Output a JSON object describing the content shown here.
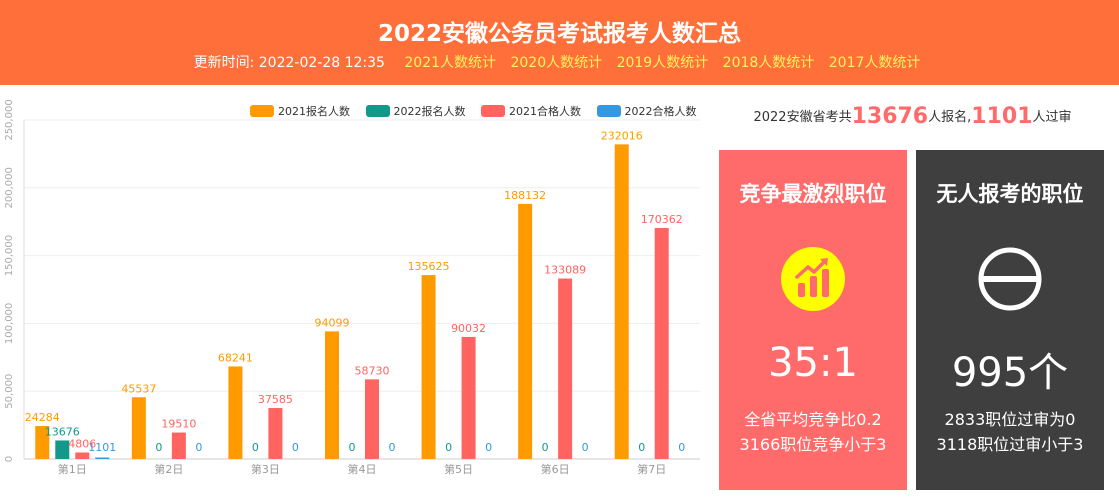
{
  "header": {
    "title": "2022安徽公务员考试报考人数汇总",
    "update_label": "更新时间:",
    "update_time": "2022-02-28 12:35",
    "links": [
      "2021人数统计",
      "2020人数统计",
      "2019人数统计",
      "2018人数统计",
      "2017人数统计"
    ]
  },
  "summary": {
    "prefix": "2022安徽省考共",
    "applicants": "13676",
    "middle": "人报名,",
    "passed": "1101",
    "suffix": "人过审"
  },
  "cards": {
    "fiercest": {
      "title": "竞争最激烈职位",
      "value": "35:1",
      "line1": "全省平均竞争比0.2",
      "line2": "3166职位竞争小于3",
      "icon": "bar-chart-arrow-icon"
    },
    "no_applicants": {
      "title": "无人报考的职位",
      "value": "995个",
      "line1": "2833职位过审为0",
      "line2": "3118职位过审小于3",
      "icon": "no-entry-icon"
    }
  },
  "colors": {
    "header_bg": "#ff6f3a",
    "link": "#fff45c",
    "series_2021_apply": "#ff9a00",
    "series_2022_apply": "#12998a",
    "series_2021_pass": "#ff6460",
    "series_2022_pass": "#3499e0",
    "card_red": "#ff6b6b",
    "card_dark": "#3f3f3f"
  },
  "chart_data": {
    "type": "bar",
    "categories": [
      "第1日",
      "第2日",
      "第3日",
      "第4日",
      "第5日",
      "第6日",
      "第7日"
    ],
    "series": [
      {
        "name": "2021报名人数",
        "values": [
          24284,
          45537,
          68241,
          94099,
          135625,
          188132,
          232016
        ]
      },
      {
        "name": "2022报名人数",
        "values": [
          13676,
          0,
          0,
          0,
          0,
          0,
          0
        ]
      },
      {
        "name": "2021合格人数",
        "values": [
          4806,
          19510,
          37585,
          58730,
          90032,
          133089,
          170362
        ]
      },
      {
        "name": "2022合格人数",
        "values": [
          1101,
          0,
          0,
          0,
          0,
          0,
          0
        ]
      }
    ],
    "y_ticks": [
      "0",
      "50,000",
      "100,000",
      "150,000",
      "200,000",
      "250,000"
    ],
    "ylim": [
      0,
      250000
    ],
    "legend_position": "top-right",
    "grid": true
  }
}
